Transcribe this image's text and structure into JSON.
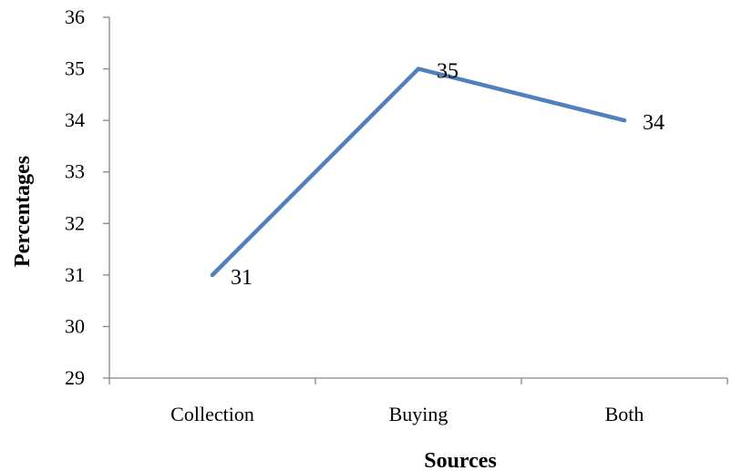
{
  "chart_data": {
    "type": "line",
    "title": "",
    "xlabel": "Sources",
    "ylabel": "Percentages",
    "categories": [
      "Collection",
      "Buying",
      "Both"
    ],
    "series": [
      {
        "values": [
          31,
          35,
          34
        ],
        "color": "#4f81bd"
      }
    ],
    "data_labels": [
      "31",
      "35",
      "34"
    ],
    "ylim": [
      29,
      36
    ],
    "yticks": [
      "29",
      "30",
      "31",
      "32",
      "33",
      "34",
      "35",
      "36"
    ],
    "grid": false,
    "legend": "none"
  }
}
